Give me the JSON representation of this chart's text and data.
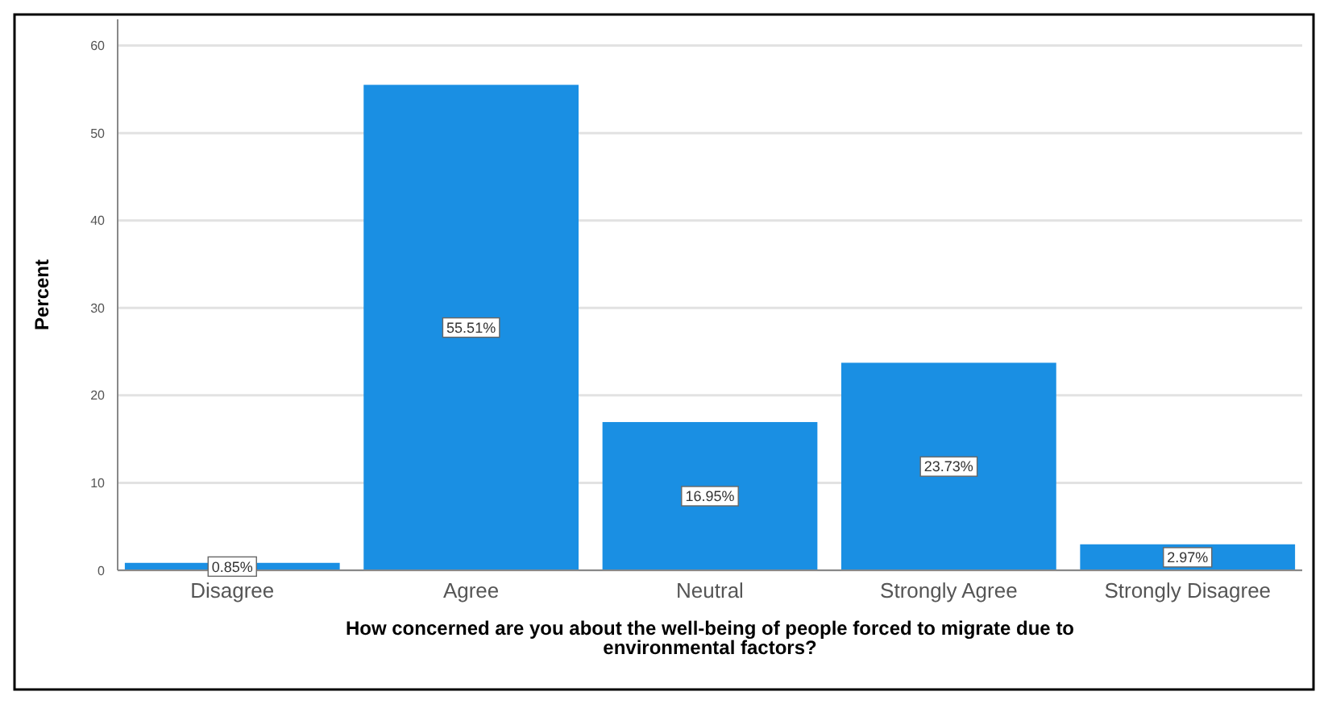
{
  "chart_data": {
    "type": "bar",
    "xlabel": "How concerned are you about the well-being of people forced to migrate due to environmental factors?",
    "ylabel": "Percent",
    "categories": [
      "Disagree",
      "Agree",
      "Neutral",
      "Strongly Agree",
      "Strongly Disagree"
    ],
    "values": [
      0.85,
      55.51,
      16.95,
      23.73,
      2.97
    ],
    "value_labels": [
      "0.85%",
      "55.51%",
      "16.95%",
      "23.73%",
      "2.97%"
    ],
    "color": "#1a8fe3",
    "ylim": [
      0,
      63
    ],
    "yticks": [
      0,
      10,
      20,
      30,
      40,
      50,
      60
    ],
    "grid": "y"
  }
}
